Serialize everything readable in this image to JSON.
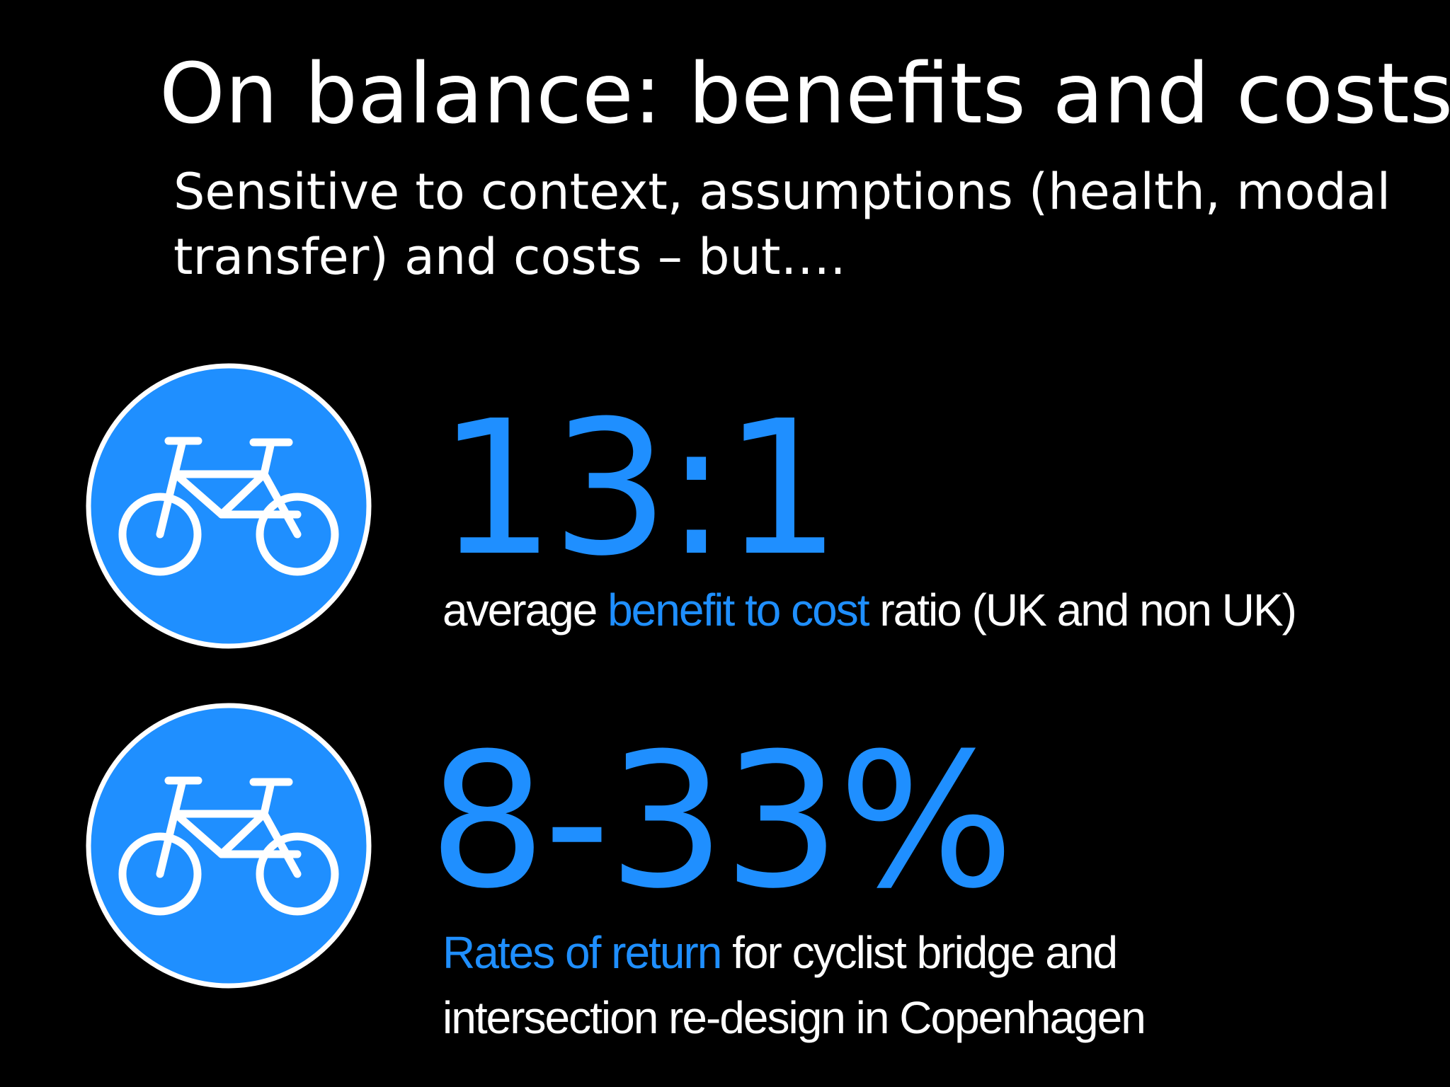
{
  "slide": {
    "title": "On balance: benefits and costs",
    "subtitle": "Sensitive to context, assumptions (health, modal transfer)  and costs – but…."
  },
  "colors": {
    "background": "#000000",
    "text": "#ffffff",
    "accent": "#1f8fff",
    "icon_fill": "#1f8fff",
    "icon_border": "#ffffff"
  },
  "stats": [
    {
      "icon": "bicycle-icon",
      "value": "13:1",
      "caption_pre": "average ",
      "caption_highlight": "benefit to cost",
      "caption_post": " ratio (UK and non UK)"
    },
    {
      "icon": "bicycle-icon",
      "value": "8-33%",
      "caption_pre": "",
      "caption_highlight": "Rates of return",
      "caption_post": " for cyclist bridge and intersection re-design in Copenhagen"
    }
  ]
}
